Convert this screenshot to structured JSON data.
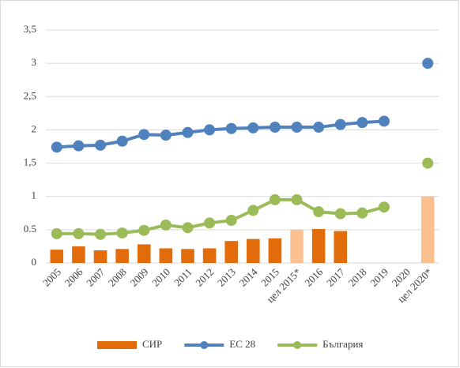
{
  "chart_data": {
    "type": "bar-line",
    "categories": [
      "2005",
      "2006",
      "2007",
      "2008",
      "2009",
      "2010",
      "2011",
      "2012",
      "2013",
      "2014",
      "2015",
      "цел 2015*",
      "2016",
      "2017",
      "2018",
      "2019",
      "2020",
      "цел 2020*"
    ],
    "series": [
      {
        "name": "СИР",
        "type": "bar",
        "color": "#e36c0a",
        "colors": [
          "#e36c0a",
          "#e36c0a",
          "#e36c0a",
          "#e36c0a",
          "#e36c0a",
          "#e36c0a",
          "#e36c0a",
          "#e36c0a",
          "#e36c0a",
          "#e36c0a",
          "#e36c0a",
          "#fac090",
          "#e36c0a",
          "#e36c0a",
          "#e36c0a",
          "#e36c0a",
          "#e36c0a",
          "#fac090"
        ],
        "values": [
          0.2,
          0.25,
          0.19,
          0.21,
          0.28,
          0.22,
          0.21,
          0.22,
          0.33,
          0.36,
          0.37,
          0.5,
          0.51,
          0.48,
          null,
          null,
          null,
          1.0
        ]
      },
      {
        "name": "ЕС 28",
        "type": "line",
        "color": "#4f81bd",
        "values": [
          1.74,
          1.76,
          1.77,
          1.83,
          1.93,
          1.92,
          1.96,
          2.0,
          2.02,
          2.03,
          2.04,
          2.04,
          2.04,
          2.08,
          2.11,
          2.13,
          null,
          3.0
        ]
      },
      {
        "name": "България",
        "type": "line",
        "color": "#9bbb59",
        "values": [
          0.44,
          0.44,
          0.43,
          0.45,
          0.49,
          0.57,
          0.53,
          0.6,
          0.64,
          0.79,
          0.95,
          0.95,
          0.77,
          0.74,
          0.75,
          0.84,
          null,
          1.5
        ]
      }
    ],
    "ylim": [
      0,
      3.5
    ],
    "yticks": [
      0,
      0.5,
      1,
      {
        "value": 1.5,
        "label": "1,5"
      },
      2,
      {
        "value": 2.5,
        "label": "2,5"
      },
      3,
      {
        "value": 3.5,
        "label": "3,5"
      }
    ],
    "grid": true,
    "legend": "bottom"
  }
}
